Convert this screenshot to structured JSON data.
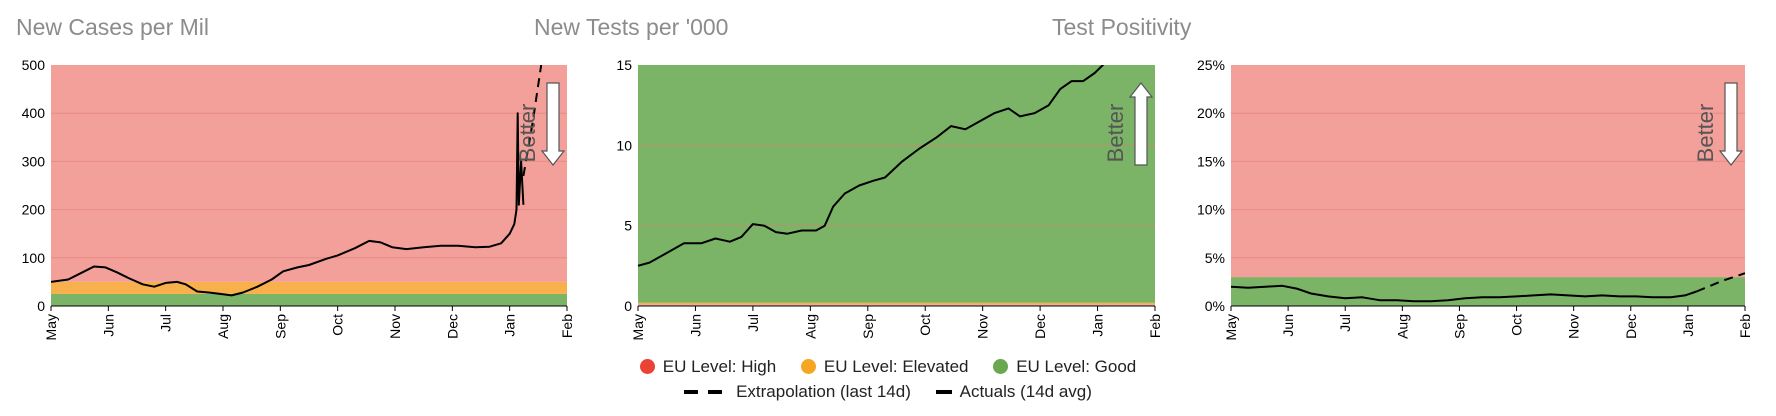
{
  "colors": {
    "high": "#f4a09a",
    "elevated": "#f8b04c",
    "good": "#7bb466",
    "high_dot": "#ea4335",
    "elevated_dot": "#f5a623",
    "good_dot": "#6aa84f",
    "line": "#000000",
    "grid": "#e07a72"
  },
  "legend": {
    "high": "EU Level: High",
    "elevated": "EU Level: Elevated",
    "good": "EU Level: Good",
    "extrapolation": "Extrapolation (last 14d)",
    "actuals": "Actuals (14d avg)"
  },
  "chart_data": [
    {
      "type": "line",
      "title": "New Cases per Mil",
      "annotation": "Better",
      "arrow": "down",
      "x": [
        "May",
        "Jun",
        "Jul",
        "Aug",
        "Sep",
        "Oct",
        "Nov",
        "Dec",
        "Jan",
        "Feb"
      ],
      "ylim": [
        0,
        500
      ],
      "yticks": [
        "0",
        "100",
        "200",
        "300",
        "400",
        "500"
      ],
      "bands": [
        {
          "level": "good",
          "from": 0,
          "to": 25
        },
        {
          "level": "elevated",
          "from": 25,
          "to": 50
        },
        {
          "level": "high",
          "from": 50,
          "to": 500
        }
      ],
      "series": [
        {
          "kind": "actuals",
          "values": [
            [
              0,
              50
            ],
            [
              0.3,
              55
            ],
            [
              0.55,
              70
            ],
            [
              0.75,
              82
            ],
            [
              0.95,
              80
            ],
            [
              1.15,
              70
            ],
            [
              1.35,
              58
            ],
            [
              1.6,
              45
            ],
            [
              1.8,
              40
            ],
            [
              2.0,
              48
            ],
            [
              2.2,
              50
            ],
            [
              2.35,
              45
            ],
            [
              2.55,
              30
            ],
            [
              2.75,
              28
            ],
            [
              2.95,
              25
            ],
            [
              3.15,
              22
            ],
            [
              3.35,
              28
            ],
            [
              3.6,
              40
            ],
            [
              3.85,
              55
            ],
            [
              4.05,
              72
            ],
            [
              4.3,
              80
            ],
            [
              4.5,
              85
            ],
            [
              4.8,
              98
            ],
            [
              5.0,
              105
            ],
            [
              5.3,
              120
            ],
            [
              5.55,
              135
            ],
            [
              5.75,
              132
            ],
            [
              5.95,
              122
            ],
            [
              6.2,
              118
            ],
            [
              6.5,
              122
            ],
            [
              6.8,
              125
            ],
            [
              7.1,
              125
            ],
            [
              7.4,
              122
            ],
            [
              7.65,
              123
            ],
            [
              7.85,
              130
            ],
            [
              8.0,
              150
            ],
            [
              8.08,
              170
            ],
            [
              8.12,
              200
            ],
            [
              8.14,
              400
            ],
            [
              8.16,
              210
            ],
            [
              8.2,
              300
            ],
            [
              8.24,
              210
            ]
          ]
        },
        {
          "kind": "extrapolation",
          "values": [
            [
              8.24,
              270
            ],
            [
              8.4,
              380
            ],
            [
              8.55,
              500
            ]
          ]
        }
      ]
    },
    {
      "type": "line",
      "title": "New Tests per '000",
      "annotation": "Better",
      "arrow": "up",
      "x": [
        "May",
        "Jun",
        "Jul",
        "Aug",
        "Sep",
        "Oct",
        "Nov",
        "Dec",
        "Jan",
        "Feb"
      ],
      "ylim": [
        0,
        15
      ],
      "yticks": [
        "0",
        "5",
        "10",
        "15"
      ],
      "bands": [
        {
          "level": "high",
          "from": 0,
          "to": 0.1
        },
        {
          "level": "elevated",
          "from": 0.1,
          "to": 0.2
        },
        {
          "level": "good",
          "from": 0.2,
          "to": 15
        }
      ],
      "series": [
        {
          "kind": "actuals",
          "values": [
            [
              0,
              2.5
            ],
            [
              0.2,
              2.7
            ],
            [
              0.5,
              3.3
            ],
            [
              0.8,
              3.9
            ],
            [
              1.1,
              3.9
            ],
            [
              1.35,
              4.2
            ],
            [
              1.6,
              4.0
            ],
            [
              1.8,
              4.3
            ],
            [
              2.0,
              5.1
            ],
            [
              2.2,
              5.0
            ],
            [
              2.4,
              4.6
            ],
            [
              2.6,
              4.5
            ],
            [
              2.85,
              4.7
            ],
            [
              3.1,
              4.7
            ],
            [
              3.25,
              5.0
            ],
            [
              3.4,
              6.2
            ],
            [
              3.6,
              7.0
            ],
            [
              3.85,
              7.5
            ],
            [
              4.1,
              7.8
            ],
            [
              4.3,
              8.0
            ],
            [
              4.6,
              9.0
            ],
            [
              4.9,
              9.8
            ],
            [
              5.2,
              10.5
            ],
            [
              5.45,
              11.2
            ],
            [
              5.7,
              11.0
            ],
            [
              5.95,
              11.5
            ],
            [
              6.2,
              12.0
            ],
            [
              6.45,
              12.3
            ],
            [
              6.65,
              11.8
            ],
            [
              6.9,
              12.0
            ],
            [
              7.15,
              12.5
            ],
            [
              7.35,
              13.5
            ],
            [
              7.55,
              14.0
            ],
            [
              7.75,
              14.0
            ],
            [
              7.95,
              14.5
            ],
            [
              8.15,
              15.2
            ]
          ]
        },
        {
          "kind": "extrapolation",
          "values": [
            [
              8.15,
              15.2
            ],
            [
              8.35,
              16.0
            ]
          ]
        }
      ]
    },
    {
      "type": "line",
      "title": "Test Positivity",
      "annotation": "Better",
      "arrow": "down",
      "x": [
        "May",
        "Jun",
        "Jul",
        "Aug",
        "Sep",
        "Oct",
        "Nov",
        "Dec",
        "Jan",
        "Feb"
      ],
      "ylim": [
        0,
        25
      ],
      "yticks": [
        "0%",
        "5%",
        "10%",
        "15%",
        "20%",
        "25%"
      ],
      "bands": [
        {
          "level": "good",
          "from": 0,
          "to": 3
        },
        {
          "level": "high",
          "from": 3,
          "to": 25
        }
      ],
      "series": [
        {
          "kind": "actuals",
          "values": [
            [
              0,
              2.0
            ],
            [
              0.3,
              1.9
            ],
            [
              0.6,
              2.0
            ],
            [
              0.9,
              2.1
            ],
            [
              1.15,
              1.8
            ],
            [
              1.4,
              1.3
            ],
            [
              1.7,
              1.0
            ],
            [
              2.0,
              0.8
            ],
            [
              2.3,
              0.9
            ],
            [
              2.6,
              0.6
            ],
            [
              2.9,
              0.6
            ],
            [
              3.2,
              0.5
            ],
            [
              3.5,
              0.5
            ],
            [
              3.8,
              0.6
            ],
            [
              4.1,
              0.8
            ],
            [
              4.4,
              0.9
            ],
            [
              4.7,
              0.9
            ],
            [
              5.0,
              1.0
            ],
            [
              5.3,
              1.1
            ],
            [
              5.6,
              1.2
            ],
            [
              5.9,
              1.1
            ],
            [
              6.2,
              1.0
            ],
            [
              6.5,
              1.1
            ],
            [
              6.8,
              1.0
            ],
            [
              7.1,
              1.0
            ],
            [
              7.4,
              0.9
            ],
            [
              7.7,
              0.9
            ],
            [
              7.95,
              1.1
            ],
            [
              8.15,
              1.5
            ]
          ]
        },
        {
          "kind": "extrapolation",
          "values": [
            [
              8.15,
              1.5
            ],
            [
              8.6,
              2.6
            ],
            [
              9.0,
              3.4
            ]
          ]
        }
      ]
    }
  ]
}
